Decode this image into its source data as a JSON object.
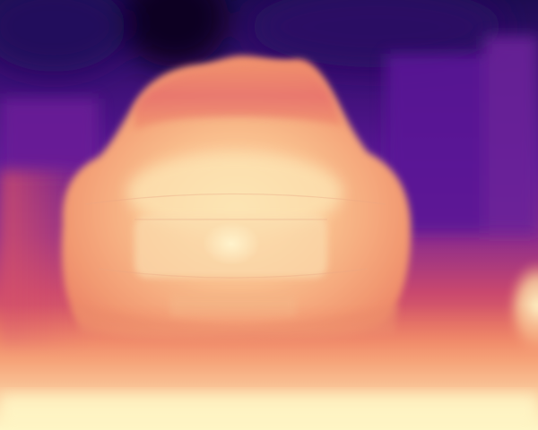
{
  "image": {
    "kind": "depth-map",
    "colormap": "magma",
    "subject": "car-front",
    "colors": {
      "far": "#0b0524",
      "deep_purple": "#3a0f73",
      "purple": "#5a1896",
      "magenta": "#8b2c8c",
      "rose": "#c9486e",
      "coral": "#ec7a60",
      "peach": "#f6a878",
      "light_peach": "#fbd7a2",
      "near": "#fdf4c0"
    }
  }
}
